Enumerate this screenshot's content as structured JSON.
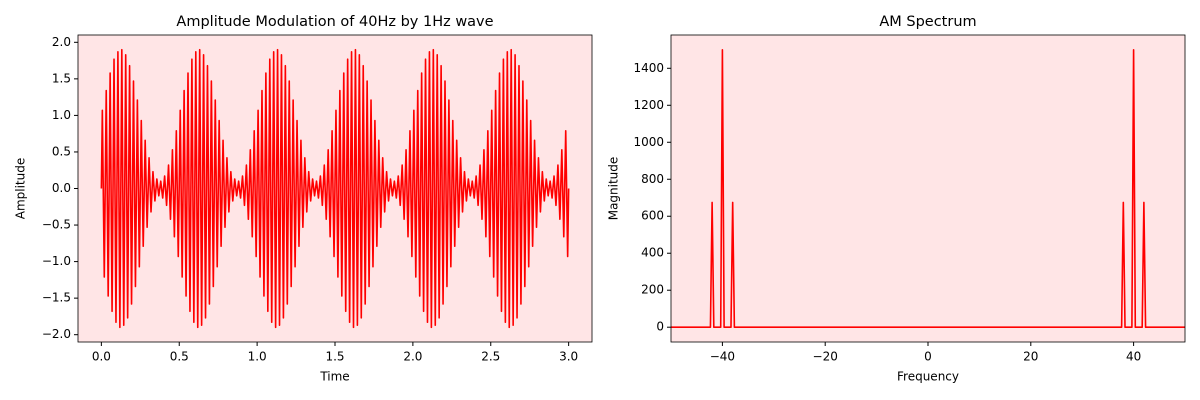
{
  "chart_data": [
    {
      "type": "line",
      "title": "Amplitude Modulation of 40Hz by 1Hz wave",
      "xlabel": "Time",
      "ylabel": "Amplitude",
      "color": "#ff0000",
      "background": "#ffe5e6",
      "xlim": [
        -0.15,
        3.15
      ],
      "ylim": [
        -2.1,
        2.1
      ],
      "xticks": [
        {
          "value": 0,
          "label": "0.0"
        },
        {
          "value": 0.5,
          "label": "0.5"
        },
        {
          "value": 1,
          "label": "1.0"
        },
        {
          "value": 1.5,
          "label": "1.5"
        },
        {
          "value": 2,
          "label": "2.0"
        },
        {
          "value": 2.5,
          "label": "2.5"
        },
        {
          "value": 3,
          "label": "3.0"
        }
      ],
      "yticks": [
        {
          "value": -2,
          "label": "−2.0"
        },
        {
          "value": -1.5,
          "label": "−1.5"
        },
        {
          "value": -1,
          "label": "−1.0"
        },
        {
          "value": -0.5,
          "label": "−0.5"
        },
        {
          "value": 0,
          "label": "0.0"
        },
        {
          "value": 0.5,
          "label": "0.5"
        },
        {
          "value": 1,
          "label": "1.0"
        },
        {
          "value": 1.5,
          "label": "1.5"
        },
        {
          "value": 2,
          "label": "2.0"
        }
      ],
      "x": [
        0,
        0.00625,
        0.01875,
        0.03125,
        0.04375,
        0.05625,
        0.06875,
        0.08125,
        0.09375,
        0.10625,
        0.11875,
        0.13125,
        0.14375,
        0.15625,
        0.16875,
        0.18125,
        0.19375,
        0.20625,
        0.21875,
        0.23125,
        0.24375,
        0.25625,
        0.26875,
        0.28125,
        0.29375,
        0.30625,
        0.31875,
        0.33125,
        0.34375,
        0.35625,
        0.36875,
        0.38125,
        0.39375,
        0.40625,
        0.41875,
        0.43125,
        0.44375,
        0.45625,
        0.46875,
        0.48125,
        0.49375,
        0.50625,
        0.51875,
        0.53125,
        0.54375,
        0.55625,
        0.56875,
        0.58125,
        0.59375,
        0.60625,
        0.61875,
        0.63125,
        0.64375,
        0.65625,
        0.66875,
        0.68125,
        0.69375,
        0.70625,
        0.71875,
        0.73125,
        0.74375,
        0.75625,
        0.76875,
        0.78125,
        0.79375,
        0.80625,
        0.81875,
        0.83125,
        0.84375,
        0.85625,
        0.86875,
        0.88125,
        0.89375,
        0.90625,
        0.91875,
        0.93125,
        0.94375,
        0.95625,
        0.96875,
        0.98125,
        0.99375,
        1.00625,
        1.01875,
        1.03125,
        1.04375,
        1.05625,
        1.06875,
        1.08125,
        1.09375,
        1.10625,
        1.11875,
        1.13125,
        1.14375,
        1.15625,
        1.16875,
        1.18125,
        1.19375,
        1.20625,
        1.21875,
        1.23125,
        1.24375,
        1.25625,
        1.26875,
        1.28125,
        1.29375,
        1.30625,
        1.31875,
        1.33125,
        1.34375,
        1.35625,
        1.36875,
        1.38125,
        1.39375,
        1.40625,
        1.41875,
        1.43125,
        1.44375,
        1.45625,
        1.46875,
        1.48125,
        1.49375,
        1.50625,
        1.51875,
        1.53125,
        1.54375,
        1.55625,
        1.56875,
        1.58125,
        1.59375,
        1.60625,
        1.61875,
        1.63125,
        1.64375,
        1.65625,
        1.66875,
        1.68125,
        1.69375,
        1.70625,
        1.71875,
        1.73125,
        1.74375,
        1.75625,
        1.76875,
        1.78125,
        1.79375,
        1.80625,
        1.81875,
        1.83125,
        1.84375,
        1.85625,
        1.86875,
        1.88125,
        1.89375,
        1.90625,
        1.91875,
        1.93125,
        1.94375,
        1.95625,
        1.96875,
        1.98125,
        1.99375,
        2.00625,
        2.01875,
        2.03125,
        2.04375,
        2.05625,
        2.06875,
        2.08125,
        2.09375,
        2.10625,
        2.11875,
        2.13125,
        2.14375,
        2.15625,
        2.16875,
        2.18125,
        2.19375,
        2.20625,
        2.21875,
        2.23125,
        2.24375,
        2.25625,
        2.26875,
        2.28125,
        2.29375,
        2.30625,
        2.31875,
        2.33125,
        2.34375,
        2.35625,
        2.36875,
        2.38125,
        2.39375,
        2.40625,
        2.41875,
        2.43125,
        2.44375,
        2.45625,
        2.46875,
        2.48125,
        2.49375,
        2.50625,
        2.51875,
        2.53125,
        2.54375,
        2.55625,
        2.56875,
        2.58125,
        2.59375,
        2.60625,
        2.61875,
        2.63125,
        2.64375,
        2.65625,
        2.66875,
        2.68125,
        2.69375,
        2.70625,
        2.71875,
        2.73125,
        2.74375,
        2.75625,
        2.76875,
        2.78125,
        2.79375,
        2.80625,
        2.81875,
        2.83125,
        2.84375,
        2.85625,
        2.86875,
        2.88125,
        2.89375,
        2.90625,
        2.91875,
        2.93125,
        2.94375,
        2.95625,
        2.96875,
        2.98125,
        2.99375,
        3
      ],
      "values": [
        0,
        1.07,
        -1.21,
        1.34,
        -1.47,
        1.58,
        -1.68,
        1.77,
        -1.83,
        1.87,
        -1.9,
        1.9,
        -1.87,
        1.83,
        -1.77,
        1.68,
        -1.58,
        1.47,
        -1.34,
        1.21,
        -1.07,
        0.93,
        -0.79,
        0.66,
        -0.53,
        0.42,
        -0.32,
        0.23,
        -0.17,
        0.13,
        -0.1,
        0.1,
        -0.13,
        0.17,
        -0.23,
        0.32,
        -0.42,
        0.53,
        -0.66,
        0.79,
        -0.93,
        1.07,
        -1.21,
        1.34,
        -1.47,
        1.58,
        -1.68,
        1.77,
        -1.83,
        1.87,
        -1.9,
        1.9,
        -1.87,
        1.83,
        -1.77,
        1.68,
        -1.58,
        1.47,
        -1.34,
        1.21,
        -1.07,
        0.93,
        -0.79,
        0.66,
        -0.53,
        0.42,
        -0.32,
        0.23,
        -0.17,
        0.13,
        -0.1,
        0.1,
        -0.13,
        0.17,
        -0.23,
        0.32,
        -0.42,
        0.53,
        -0.66,
        0.79,
        -0.93,
        1.07,
        -1.21,
        1.34,
        -1.47,
        1.58,
        -1.68,
        1.77,
        -1.83,
        1.87,
        -1.9,
        1.9,
        -1.87,
        1.83,
        -1.77,
        1.68,
        -1.58,
        1.47,
        -1.34,
        1.21,
        -1.07,
        0.93,
        -0.79,
        0.66,
        -0.53,
        0.42,
        -0.32,
        0.23,
        -0.17,
        0.13,
        -0.1,
        0.1,
        -0.13,
        0.17,
        -0.23,
        0.32,
        -0.42,
        0.53,
        -0.66,
        0.79,
        -0.93,
        1.07,
        -1.21,
        1.34,
        -1.47,
        1.58,
        -1.68,
        1.77,
        -1.83,
        1.87,
        -1.9,
        1.9,
        -1.87,
        1.83,
        -1.77,
        1.68,
        -1.58,
        1.47,
        -1.34,
        1.21,
        -1.07,
        0.93,
        -0.79,
        0.66,
        -0.53,
        0.42,
        -0.32,
        0.23,
        -0.17,
        0.13,
        -0.1,
        0.1,
        -0.13,
        0.17,
        -0.23,
        0.32,
        -0.42,
        0.53,
        -0.66,
        0.79,
        -0.93,
        1.07,
        -1.21,
        1.34,
        -1.47,
        1.58,
        -1.68,
        1.77,
        -1.83,
        1.87,
        -1.9,
        1.9,
        -1.87,
        1.83,
        -1.77,
        1.68,
        -1.58,
        1.47,
        -1.34,
        1.21,
        -1.07,
        0.93,
        -0.79,
        0.66,
        -0.53,
        0.42,
        -0.32,
        0.23,
        -0.17,
        0.13,
        -0.1,
        0.1,
        -0.13,
        0.17,
        -0.23,
        0.32,
        -0.42,
        0.53,
        -0.66,
        0.79,
        -0.93,
        1.07,
        -1.21,
        1.34,
        -1.47,
        1.58,
        -1.68,
        1.77,
        -1.83,
        1.87,
        -1.9,
        1.9,
        -1.87,
        1.83,
        -1.77,
        1.68,
        -1.58,
        1.47,
        -1.34,
        1.21,
        -1.07,
        0.93,
        -0.79,
        0.66,
        -0.53,
        0.42,
        -0.32,
        0.23,
        -0.17,
        0.13,
        -0.1,
        0.1,
        -0.13,
        0.17,
        -0.23,
        0.32,
        -0.42,
        0.53,
        -0.66,
        0.79,
        -0.93,
        0
      ]
    },
    {
      "type": "line",
      "title": "AM Spectrum",
      "xlabel": "Frequency",
      "ylabel": "Magnitude",
      "color": "#ff0000",
      "background": "#ffe5e6",
      "xlim": [
        -50,
        50
      ],
      "ylim": [
        -80,
        1580
      ],
      "xticks": [
        {
          "value": -40,
          "label": "−40"
        },
        {
          "value": -20,
          "label": "−20"
        },
        0,
        20,
        40
      ],
      "yticks": [
        0,
        200,
        400,
        600,
        800,
        1000,
        1200,
        1400
      ],
      "x": [
        -50,
        -42.33,
        -42,
        -41.67,
        -40.33,
        -40,
        -39.67,
        -38.33,
        -38,
        -37.67,
        37.67,
        38,
        38.33,
        39.67,
        40,
        40.33,
        41.67,
        42,
        42.33,
        50
      ],
      "values": [
        0,
        0,
        675,
        0,
        0,
        1500,
        0,
        0,
        675,
        0,
        0,
        675,
        0,
        0,
        1500,
        0,
        0,
        675,
        0,
        0
      ]
    }
  ]
}
